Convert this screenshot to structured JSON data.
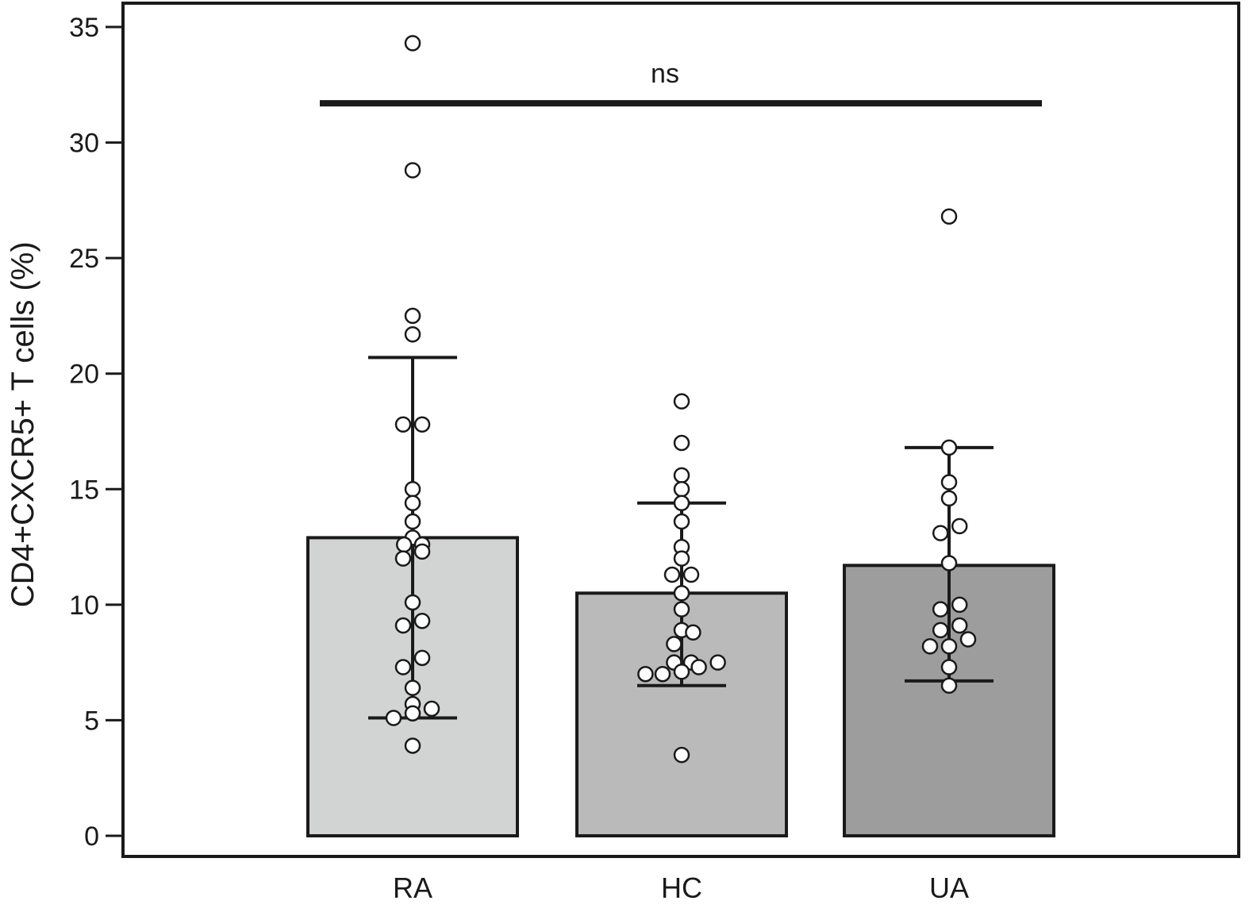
{
  "chart_data": {
    "type": "bar",
    "categories": [
      "RA",
      "HC",
      "UA"
    ],
    "values": [
      12.9,
      10.5,
      11.7
    ],
    "bar_colors": [
      "#d2d4d3",
      "#b9bab9",
      "#9d9d9d"
    ],
    "error_bars": [
      {
        "low": 5.1,
        "high": 20.7
      },
      {
        "low": 6.5,
        "high": 14.4
      },
      {
        "low": 6.7,
        "high": 16.8
      }
    ],
    "points": [
      [
        34.3,
        28.8,
        22.5,
        21.7,
        17.8,
        17.8,
        15.0,
        14.4,
        13.6,
        12.9,
        12.6,
        12.6,
        12.3,
        12.0,
        10.1,
        9.3,
        9.1,
        7.7,
        7.3,
        6.4,
        5.7,
        5.5,
        5.3,
        5.1,
        3.9
      ],
      [
        18.8,
        17.0,
        15.6,
        15.0,
        14.4,
        13.6,
        12.5,
        12.0,
        11.3,
        11.3,
        10.5,
        9.8,
        8.9,
        8.8,
        8.3,
        7.5,
        7.5,
        7.5,
        7.3,
        7.1,
        7.0,
        7.0,
        3.5
      ],
      [
        26.8,
        16.8,
        15.3,
        14.6,
        13.4,
        13.1,
        11.8,
        10.0,
        9.8,
        9.1,
        8.9,
        8.5,
        8.2,
        8.2,
        7.3,
        6.5
      ]
    ],
    "point_offsets": [
      [
        0,
        0,
        0,
        0,
        -0.5,
        0.5,
        0,
        0,
        0,
        0,
        -0.45,
        0.5,
        0.5,
        -0.5,
        0,
        0.5,
        -0.5,
        0.5,
        -0.5,
        0,
        0,
        1.0,
        0,
        -1.0,
        0
      ],
      [
        0,
        0,
        0,
        0,
        0,
        0,
        0,
        0,
        -0.5,
        0.5,
        0,
        0,
        0,
        0.6,
        -0.4,
        -0.4,
        0.5,
        1.9,
        0.9,
        0,
        -1.9,
        -1.0,
        0
      ],
      [
        0,
        0,
        0,
        0,
        0.55,
        -0.45,
        0,
        0.55,
        -0.45,
        0.55,
        -0.45,
        1.0,
        -1.0,
        0,
        0,
        0
      ]
    ],
    "significance": {
      "label": "ns",
      "y": 31.7,
      "from": "RA",
      "to": "UA"
    },
    "ylabel": "CD4+CXCR5+ T cells (%)",
    "xlabel": "",
    "ylim": [
      0,
      35
    ],
    "yticks": [
      0,
      5,
      10,
      15,
      20,
      25,
      30,
      35
    ],
    "grid": false
  }
}
